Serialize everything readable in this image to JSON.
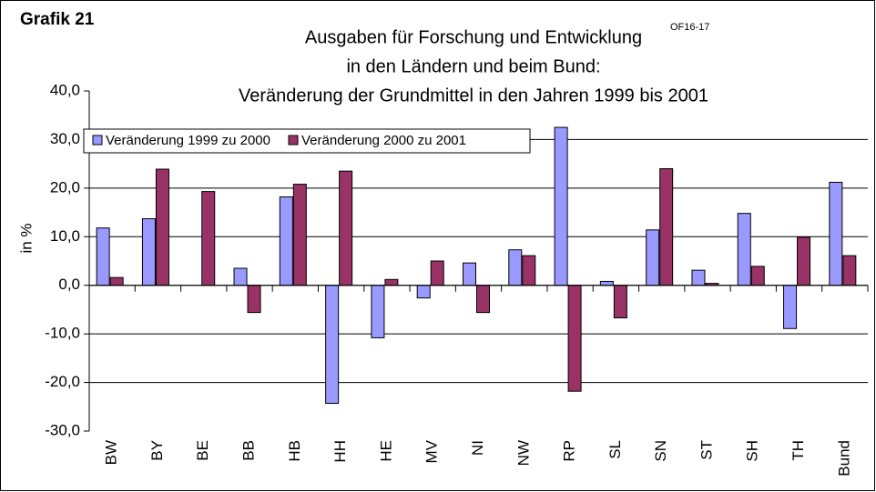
{
  "chart_data": {
    "type": "bar",
    "label": "Grafik 21",
    "title": [
      "Ausgaben für Forschung und Entwicklung",
      "in den Ländern und beim Bund:",
      "Veränderung der Grundmittel in den Jahren 1999 bis 2001"
    ],
    "title_note": "OF16-17",
    "ylabel": "in %",
    "categories": [
      "BW",
      "BY",
      "BE",
      "BB",
      "HB",
      "HH",
      "HE",
      "MV",
      "NI",
      "NW",
      "RP",
      "SL",
      "SN",
      "ST",
      "SH",
      "TH",
      "Bund"
    ],
    "series": [
      {
        "name": "Veränderung 1999 zu 2000",
        "color": "#9999ff",
        "values": [
          11.8,
          13.7,
          0,
          3.5,
          18.2,
          -24.3,
          -10.8,
          -2.6,
          4.6,
          7.3,
          32.5,
          0.8,
          11.4,
          3.1,
          14.8,
          -8.9,
          21.2
        ]
      },
      {
        "name": "Veränderung 2000 zu 2001",
        "color": "#993366",
        "values": [
          1.6,
          23.9,
          19.3,
          -5.6,
          20.8,
          23.5,
          1.2,
          5.0,
          -5.6,
          6.1,
          -21.8,
          -6.7,
          24.0,
          0.4,
          3.9,
          9.9,
          6.1
        ]
      }
    ],
    "ylim": [
      -30,
      40
    ],
    "yticks": [
      {
        "value": -30,
        "label": "-30,0"
      },
      {
        "value": -20,
        "label": "-20,0"
      },
      {
        "value": -10,
        "label": "-10,0"
      },
      {
        "value": 0,
        "label": "0,0"
      },
      {
        "value": 10,
        "label": "10,0"
      },
      {
        "value": 20,
        "label": "20,0"
      },
      {
        "value": 30,
        "label": "30,0"
      },
      {
        "value": 40,
        "label": "40,0"
      }
    ],
    "grid": true,
    "legend": "top-left"
  }
}
